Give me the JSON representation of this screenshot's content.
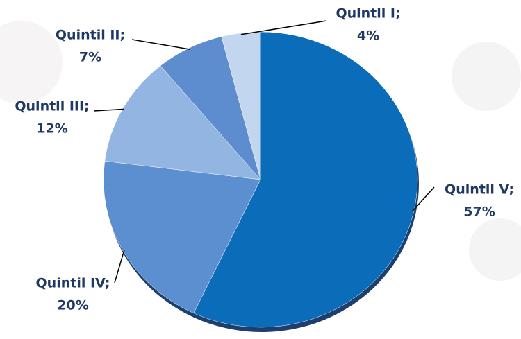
{
  "chart_data": {
    "type": "pie",
    "categories": [
      "Quintil V;",
      "Quintil IV;",
      "Quintil III;",
      "Quintil II;",
      "Quintil I;"
    ],
    "values": [
      57,
      20,
      12,
      7,
      4
    ],
    "value_labels": [
      "57%",
      "20%",
      "12%",
      "7%",
      "4%"
    ],
    "colors": [
      "#0b6cb9",
      "#5b8fd0",
      "#93b5e2",
      "#5d8dcf",
      "#c3d6ef"
    ]
  }
}
